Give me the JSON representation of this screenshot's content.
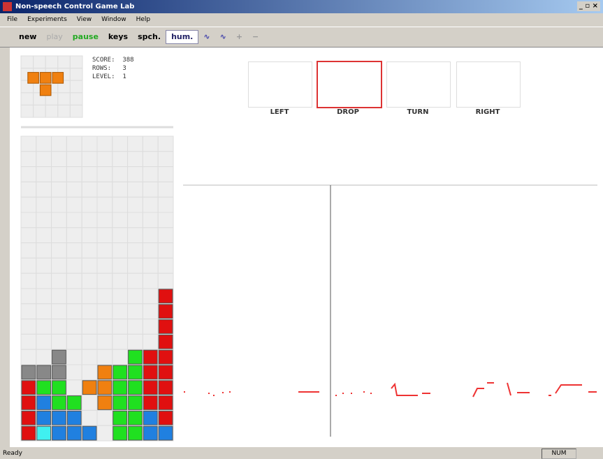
{
  "window": {
    "title": "Non-speech Control Game Lab"
  },
  "menu": [
    "File",
    "Experiments",
    "View",
    "Window",
    "Help"
  ],
  "toolbar": [
    "new",
    "play",
    "pause",
    "keys",
    "spch.",
    "hum.",
    "+",
    "−"
  ],
  "stats": [
    "SCORE:  388",
    "ROWS:   3",
    "LEVEL:  1"
  ],
  "commands": [
    "LEFT",
    "DROP",
    "TURN",
    "RIGHT"
  ],
  "status": {
    "text": "Ready",
    "num": "NUM"
  }
}
